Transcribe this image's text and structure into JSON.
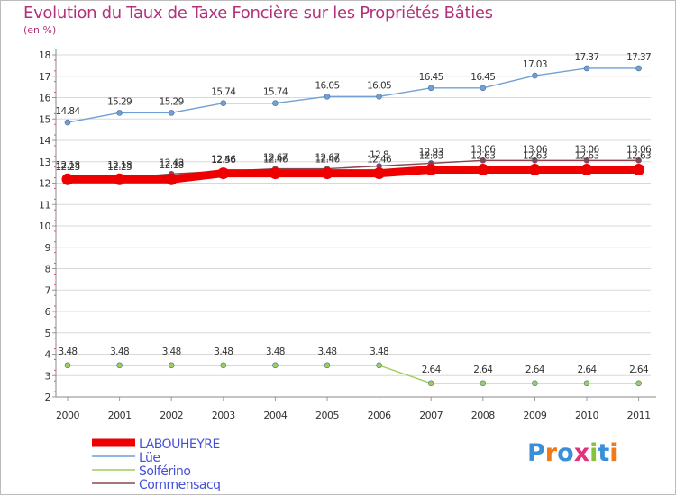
{
  "title": "Evolution du Taux de Taxe Foncière sur les Propriétés Bâties",
  "subtitle": "(en %)",
  "logo": {
    "text": "Proxiti",
    "letter_colors": [
      "#3a8fd6",
      "#f07a1a",
      "#3a8fd6",
      "#e2327b",
      "#86c23b",
      "#3a8fd6",
      "#f07a1a"
    ]
  },
  "chart_data": {
    "type": "line",
    "title": "Evolution du Taux de Taxe Foncière sur les Propriétés Bâties",
    "ylabel": "(en %)",
    "xlabel": "",
    "ylim": [
      2,
      18
    ],
    "yticks": [
      "2",
      "3",
      "4",
      "5",
      "6",
      "7",
      "8",
      "9",
      "10",
      "11",
      "12",
      "13",
      "14",
      "15",
      "16",
      "17",
      "18"
    ],
    "categories": [
      "2000",
      "2001",
      "2002",
      "2003",
      "2004",
      "2005",
      "2006",
      "2007",
      "2008",
      "2009",
      "2010",
      "2011"
    ],
    "grid": true,
    "legend_position": "bottom-left",
    "series": [
      {
        "name": "LABOUHEYRE",
        "color": "#ee0000",
        "values": [
          12.18,
          12.18,
          12.18,
          12.46,
          12.46,
          12.46,
          12.46,
          12.63,
          12.63,
          12.63,
          12.63,
          12.63
        ],
        "labels": [
          "12.18",
          "12.18",
          "12.18",
          "12.46",
          "12.46",
          "12.46",
          "12.46",
          "12.63",
          "12.63",
          "12.63",
          "12.63",
          "12.63"
        ]
      },
      {
        "name": "Lüe",
        "color": "#6fa1d4",
        "values": [
          14.84,
          15.29,
          15.29,
          15.74,
          15.74,
          16.05,
          16.05,
          16.45,
          16.45,
          17.03,
          17.37,
          17.37
        ],
        "labels": [
          "14.84",
          "15.29",
          "15.29",
          "15.74",
          "15.74",
          "16.05",
          "16.05",
          "16.45",
          "16.45",
          "17.03",
          "17.37",
          "17.37"
        ]
      },
      {
        "name": "Solférino",
        "color": "#9ccf5a",
        "values": [
          3.48,
          3.48,
          3.48,
          3.48,
          3.48,
          3.48,
          3.48,
          2.64,
          2.64,
          2.64,
          2.64,
          2.64
        ],
        "labels": [
          "3.48",
          "3.48",
          "3.48",
          "3.48",
          "3.48",
          "3.48",
          "3.48",
          "2.64",
          "2.64",
          "2.64",
          "2.64",
          "2.64"
        ]
      },
      {
        "name": "Commensacq",
        "color": "#8a4550",
        "values": [
          12.23,
          12.23,
          12.43,
          12.56,
          12.67,
          12.67,
          12.8,
          12.93,
          13.06,
          13.06,
          13.06,
          13.06
        ],
        "labels": [
          "12.23",
          "12.23",
          "12.43",
          "12.56",
          "12.67",
          "12.67",
          "12.8",
          "12.93",
          "13.06",
          "13.06",
          "13.06",
          "13.06"
        ]
      }
    ]
  }
}
